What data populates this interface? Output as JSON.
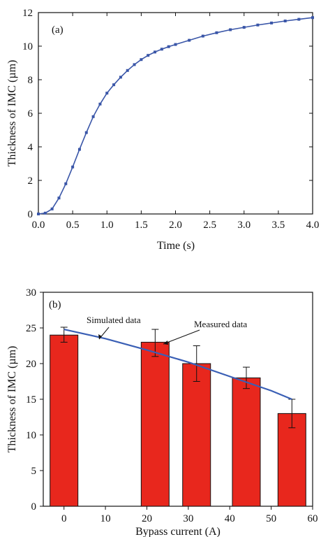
{
  "chart_data": [
    {
      "type": "line",
      "panel_label": "(a)",
      "xlabel": "Time (s)",
      "ylabel": "Thickness of IMC (µm)",
      "xlim": [
        0,
        4
      ],
      "ylim": [
        0,
        12
      ],
      "xticks": [
        "0.0",
        "0.5",
        "1.0",
        "1.5",
        "2.0",
        "2.5",
        "3.0",
        "3.5",
        "4.0"
      ],
      "yticks": [
        "0",
        "2",
        "4",
        "6",
        "8",
        "10",
        "12"
      ],
      "series": [
        {
          "color": "#3a56a8",
          "marker": "square",
          "x": [
            0.0,
            0.1,
            0.2,
            0.3,
            0.4,
            0.5,
            0.6,
            0.7,
            0.8,
            0.9,
            1.0,
            1.1,
            1.2,
            1.3,
            1.4,
            1.5,
            1.6,
            1.7,
            1.8,
            1.9,
            2.0,
            2.2,
            2.4,
            2.6,
            2.8,
            3.0,
            3.2,
            3.4,
            3.6,
            3.8,
            4.0
          ],
          "y": [
            0.0,
            0.05,
            0.3,
            0.95,
            1.8,
            2.8,
            3.85,
            4.85,
            5.8,
            6.55,
            7.2,
            7.7,
            8.15,
            8.55,
            8.9,
            9.2,
            9.45,
            9.65,
            9.82,
            9.97,
            10.1,
            10.35,
            10.6,
            10.8,
            10.98,
            11.12,
            11.26,
            11.38,
            11.5,
            11.6,
            11.7
          ]
        }
      ]
    },
    {
      "type": "bar",
      "panel_label": "(b)",
      "xlabel": "Bypass current (A)",
      "ylabel": "Thickness of IMC (µm)",
      "xlim": [
        -5,
        60
      ],
      "ylim": [
        0,
        30
      ],
      "xticks": [
        "0",
        "10",
        "20",
        "30",
        "40",
        "50",
        "60"
      ],
      "yticks": [
        "0",
        "5",
        "10",
        "15",
        "20",
        "25",
        "30"
      ],
      "bar_color": "#e8271d",
      "line_color": "#3a5fb5",
      "bars": {
        "x": [
          0,
          22,
          32,
          44,
          55
        ],
        "values": [
          24,
          23,
          20,
          18,
          13
        ],
        "err_low": [
          1.0,
          2.0,
          2.5,
          1.5,
          2.0
        ],
        "err_high": [
          1.1,
          1.8,
          2.5,
          1.5,
          2.0
        ]
      },
      "line": {
        "x": [
          0,
          10,
          20,
          30,
          40,
          50,
          55
        ],
        "y": [
          24.8,
          23.5,
          21.9,
          20.2,
          18.2,
          16.2,
          15.0
        ]
      },
      "annotations": [
        "Simulated data",
        "Measured data"
      ]
    }
  ]
}
